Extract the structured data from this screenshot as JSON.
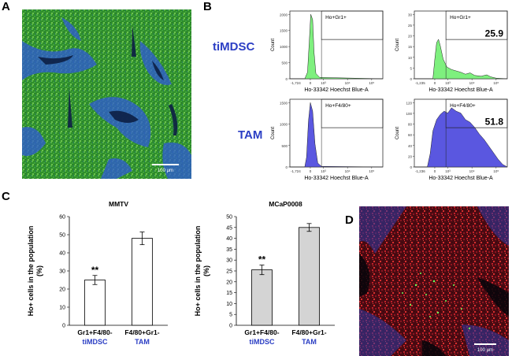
{
  "panels": {
    "a": {
      "label": "A",
      "scale_bar": "100 μm"
    },
    "b": {
      "label": "B"
    },
    "c": {
      "label": "C"
    },
    "d": {
      "label": "D",
      "scale_bar": "100 μm"
    }
  },
  "flow": {
    "row_labels": [
      "tiMDSC",
      "TAM"
    ],
    "y_axis_label": "Count",
    "x_axis_label": "Ho-33342 Hoechst Blue-A",
    "x_tick_labels": [
      "0",
      "10³",
      "10⁴",
      "10⁵"
    ],
    "plots": [
      {
        "gate": "Ho+Gr1+",
        "x_min_label": "-1,724",
        "y_ticks": [
          "0",
          "500",
          "1000",
          "1500",
          "2000"
        ],
        "percent": "",
        "color": "#7ef07e"
      },
      {
        "gate": "Ho+Gr1+",
        "x_min_label": "-1,235",
        "y_ticks": [
          "0",
          "5",
          "10",
          "15",
          "20",
          "25",
          "30"
        ],
        "percent": "25.9",
        "color": "#7ef07e"
      },
      {
        "gate": "Ho+F4/80+",
        "x_min_label": "-1,724",
        "y_ticks": [
          "0",
          "500",
          "1000",
          "1500"
        ],
        "percent": "",
        "color": "#5a57e0"
      },
      {
        "gate": "Ho+F4/80+",
        "x_min_label": "-1,236",
        "y_ticks": [
          "0",
          "20",
          "40",
          "60",
          "80",
          "100",
          "120"
        ],
        "percent": "51.8",
        "color": "#5a57e0"
      }
    ]
  },
  "chart_data": [
    {
      "type": "bar",
      "title": "MMTV",
      "ylabel": "Ho+ cells in the population (%)",
      "categories": [
        "Gr1+F4/80-",
        "F4/80+Gr1-"
      ],
      "category_sublabels": [
        "tiMDSC",
        "TAM"
      ],
      "values": [
        25,
        48
      ],
      "errors": [
        2.5,
        3.5
      ],
      "significance": [
        "**",
        ""
      ],
      "ylim": [
        0,
        60
      ],
      "yticks": [
        0,
        10,
        20,
        30,
        40,
        50,
        60
      ],
      "bar_color": "#ffffff"
    },
    {
      "type": "bar",
      "title": "MCaP0008",
      "ylabel": "Ho+ cells in the population (%)",
      "categories": [
        "Gr1+F4/80-",
        "F4/80+Gr1-"
      ],
      "category_sublabels": [
        "tiMDSC",
        "TAM"
      ],
      "values": [
        25.5,
        45
      ],
      "errors": [
        2.2,
        1.8
      ],
      "significance": [
        "**",
        ""
      ],
      "ylim": [
        0,
        50
      ],
      "yticks": [
        0,
        5,
        10,
        15,
        20,
        25,
        30,
        35,
        40,
        45,
        50
      ],
      "bar_color": "#d4d4d4"
    }
  ]
}
